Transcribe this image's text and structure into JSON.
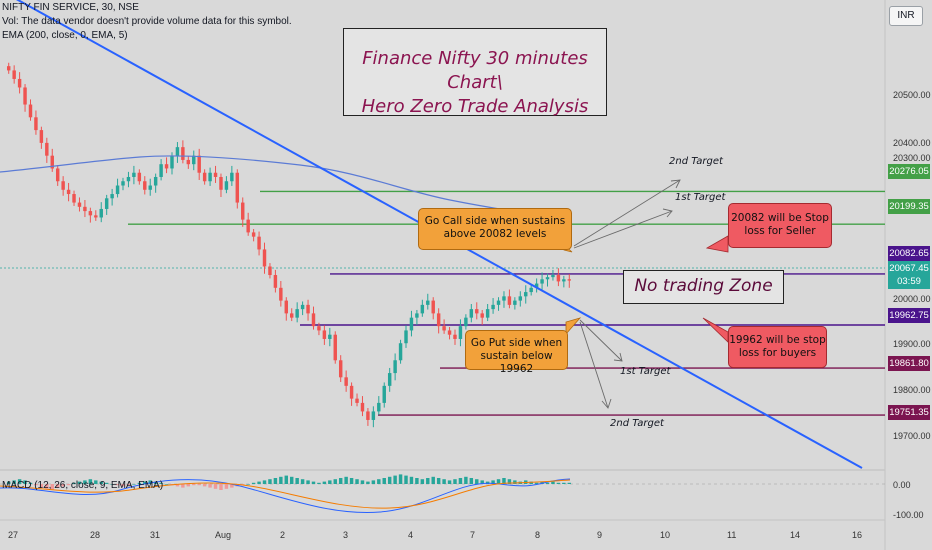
{
  "header": {
    "symbol_line": "NIFTY FIN SERVICE, 30, NSE",
    "vol_line": "Vol: The data vendor doesn't provide volume data for this symbol.",
    "ema_line": "EMA (200, close, 0, EMA, 5)",
    "currency": "INR"
  },
  "title_box": {
    "line1": "Finance Nifty 30 minutes Chart\\",
    "line2": "Hero Zero Trade Analysis"
  },
  "annotations": {
    "call_side": "Go Call side when sustains above 20082 levels",
    "put_side": "Go Put side when sustain below 19962",
    "stop_seller": "20082 will be Stop loss for Seller",
    "stop_buyer": "19962 will be stop loss for buyers",
    "no_trading": "No trading Zone",
    "target2_up": "2nd Target",
    "target1_up": "1st Target",
    "target1_down": "1st Target",
    "target2_down": "2nd Target"
  },
  "price_labels": {
    "t2_up": "20276.05",
    "t1_up": "20199.35",
    "stop_seller": "20082.65",
    "current": "20067.45",
    "countdown": "03:59",
    "stop_buyer": "19962.75",
    "t1_down": "19861.80",
    "t2_down": "19751.35"
  },
  "macd": {
    "label": "MACD (12, 26, close, 9, EMA, EMA)",
    "zero": "0.00",
    "minus": "-100.00"
  },
  "colors": {
    "bull": "#26a69a",
    "bear": "#ef5350",
    "trend": "#2962ff",
    "ema": "#5b7bd5",
    "green_line": "#43a047",
    "purple_line": "#4a148c",
    "maroon_line": "#7b1550"
  },
  "chart_data": {
    "type": "candlestick",
    "instrument": "NIFTY FIN SERVICE",
    "timeframe": "30",
    "exchange": "NSE",
    "y_axis_ticks": [
      20500,
      20400,
      20300,
      20000,
      19900,
      19800,
      19700
    ],
    "y_axis_tick_labels": [
      "20500.00",
      "20400.00",
      "20300.00",
      "20000.00",
      "19900.00",
      "19800.00",
      "19700.00"
    ],
    "x_axis_labels": [
      "27",
      "28",
      "31",
      "Aug",
      "2",
      "3",
      "4",
      "7",
      "8",
      "9",
      "10",
      "11",
      "14",
      "16"
    ],
    "levels": [
      {
        "name": "2nd Target",
        "value": 20276.05
      },
      {
        "name": "1st Target",
        "value": 20199.35
      },
      {
        "name": "20082 will be Stop loss for Seller",
        "value": 20082.65
      },
      {
        "name": "19962 will be stop loss for buyers",
        "value": 19962.75
      },
      {
        "name": "1st Target",
        "value": 19861.8
      },
      {
        "name": "2nd Target",
        "value": 19751.35
      }
    ],
    "last_price": 20067.45,
    "closes": [
      20560,
      20540,
      20520,
      20480,
      20450,
      20420,
      20390,
      20360,
      20330,
      20300,
      20280,
      20270,
      20250,
      20240,
      20230,
      20220,
      20215,
      20235,
      20260,
      20270,
      20290,
      20300,
      20310,
      20320,
      20300,
      20280,
      20290,
      20310,
      20340,
      20330,
      20360,
      20380,
      20350,
      20340,
      20360,
      20320,
      20300,
      20320,
      20310,
      20280,
      20300,
      20320,
      20250,
      20210,
      20180,
      20170,
      20140,
      20100,
      20080,
      20050,
      20020,
      19990,
      19980,
      20000,
      20010,
      19990,
      19960,
      19950,
      19930,
      19940,
      19880,
      19840,
      19820,
      19790,
      19780,
      19760,
      19740,
      19760,
      19780,
      19820,
      19850,
      19880,
      19920,
      19950,
      19980,
      19990,
      20010,
      20020,
      19990,
      19960,
      19950,
      19940,
      19930,
      19960,
      19980,
      20000,
      19990,
      19980,
      20000,
      20010,
      20020,
      20030,
      20010,
      20020,
      20030,
      20040,
      20050,
      20060,
      20070,
      20075,
      20080,
      20065,
      20070,
      20067
    ]
  }
}
